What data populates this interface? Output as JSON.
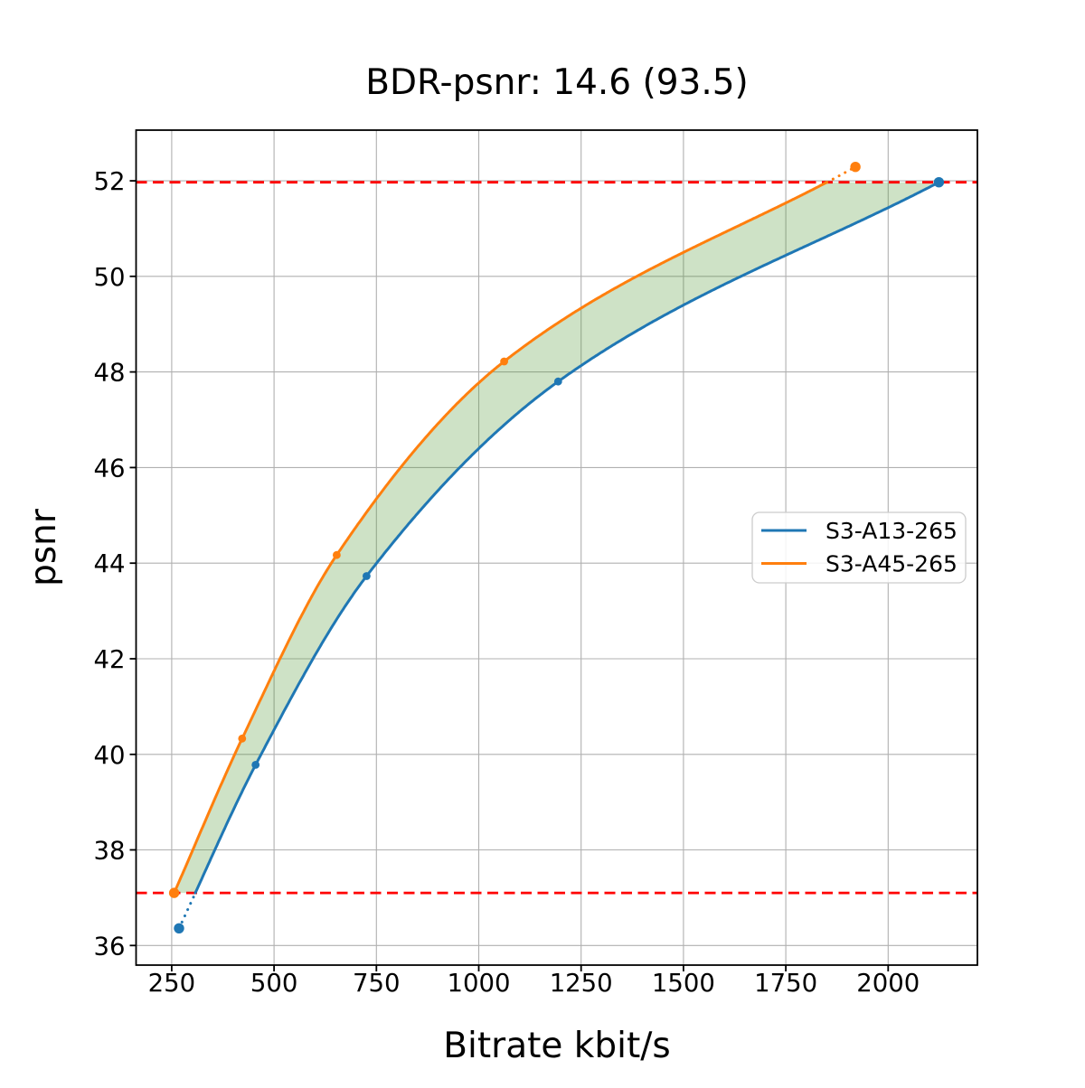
{
  "chart_data": {
    "type": "line",
    "title": "BDR-psnr: 14.6 (93.5)",
    "xlabel": "Bitrate kbit/s",
    "ylabel": "psnr",
    "xlim": [
      163,
      2218
    ],
    "ylim": [
      35.59,
      53.06
    ],
    "xticks": [
      250,
      500,
      750,
      1000,
      1250,
      1500,
      1750,
      2000
    ],
    "yticks": [
      36,
      38,
      40,
      42,
      44,
      46,
      48,
      50,
      52
    ],
    "grid": true,
    "grid_color": "#b0b0b0",
    "legend_position": "center right",
    "series": [
      {
        "name": "S3-A13-265",
        "color": "#1f77b4",
        "marker": "circle",
        "points": [
          [
            268,
            36.36
          ],
          [
            455,
            39.78
          ],
          [
            726,
            43.73
          ],
          [
            1194,
            47.8
          ],
          [
            2124,
            51.97
          ]
        ]
      },
      {
        "name": "S3-A45-265",
        "color": "#ff7f0e",
        "marker": "circle",
        "points": [
          [
            256,
            37.1
          ],
          [
            422,
            40.33
          ],
          [
            653,
            44.17
          ],
          [
            1062,
            48.22
          ],
          [
            1920,
            52.29
          ]
        ]
      }
    ],
    "hlines": [
      {
        "y": 51.97,
        "color": "#ff0000",
        "style": "dashed"
      },
      {
        "y": 37.1,
        "color": "#ff0000",
        "style": "dashed"
      }
    ],
    "shaded_region": {
      "between": [
        "S3-A45-265",
        "S3-A13-265"
      ],
      "y_range": [
        37.1,
        51.97
      ],
      "color": "rgba(80, 150, 50, 0.28)"
    }
  }
}
